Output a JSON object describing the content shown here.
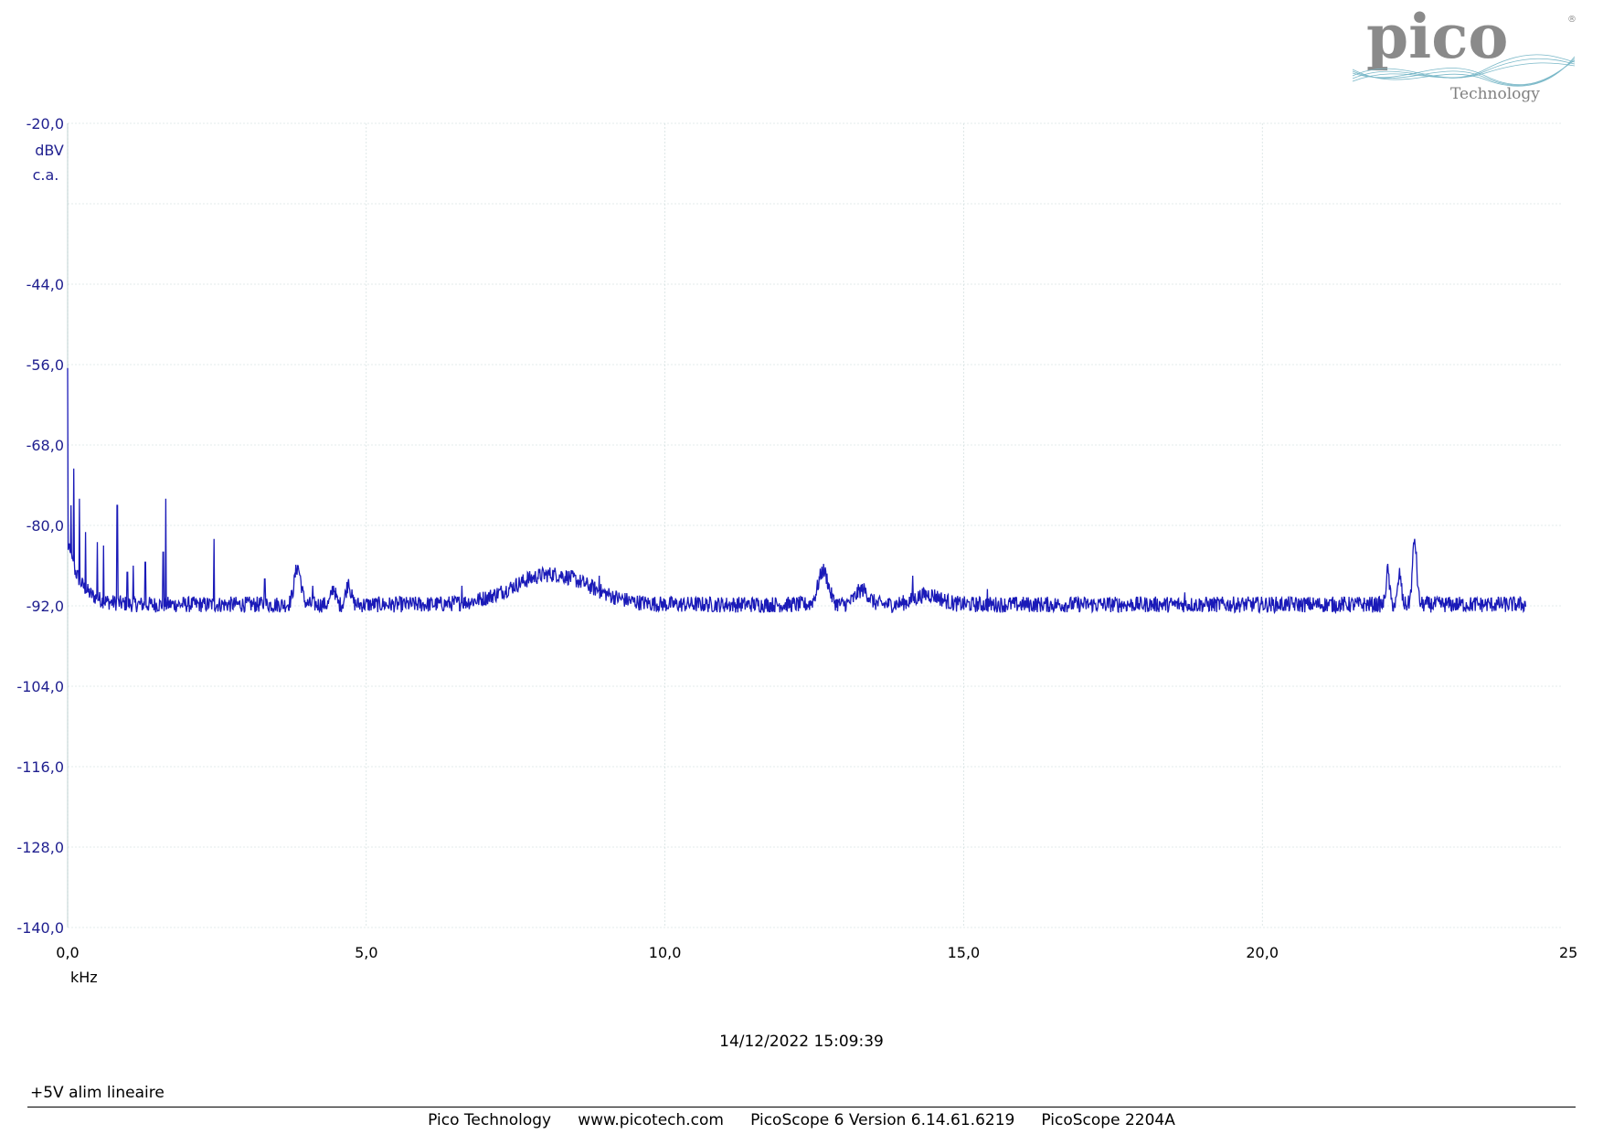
{
  "colors": {
    "trace": "#1a1ab8",
    "axis_text": "#1f1f8f",
    "grid": "#c8d8d8",
    "logo_gray": "#7a7a7a",
    "logo_wave": "#7ab8c8"
  },
  "logo": {
    "brand": "pico",
    "sub": "Technology",
    "mark": "®"
  },
  "chart_data": {
    "type": "line",
    "xlabel": "kHz",
    "ylabel_unit": "dBV",
    "ylabel_mode": "c.a.",
    "xlim": [
      0,
      25
    ],
    "x_range_plotted": [
      0,
      24.41
    ],
    "ylim": [
      -140,
      -20
    ],
    "x_ticks": [
      "0,0",
      "5,0",
      "10,0",
      "15,0",
      "20,0",
      "25"
    ],
    "y_ticks": [
      "-20,0",
      "-44,0",
      "-56,0",
      "-68,0",
      "-80,0",
      "-92,0",
      "-104,0",
      "-116,0",
      "-128,0",
      "-140,0"
    ],
    "y_tick_values": [
      -20,
      -44,
      -56,
      -68,
      -80,
      -92,
      -104,
      -116,
      -128,
      -140
    ],
    "grid": true,
    "noise_floor": -91.8,
    "series": [
      {
        "peaks_khz_dbv": [
          [
            0.0,
            -56.5
          ],
          [
            0.06,
            -77
          ],
          [
            0.1,
            -71.5
          ],
          [
            0.2,
            -76
          ],
          [
            0.3,
            -81
          ],
          [
            0.5,
            -82.5
          ],
          [
            0.6,
            -83
          ],
          [
            0.83,
            -77
          ],
          [
            1.0,
            -87
          ],
          [
            1.1,
            -86
          ],
          [
            1.3,
            -85.5
          ],
          [
            1.6,
            -84
          ],
          [
            1.64,
            -76
          ],
          [
            2.45,
            -82
          ],
          [
            3.3,
            -88
          ],
          [
            3.85,
            -86
          ],
          [
            4.1,
            -89
          ],
          [
            4.45,
            -89
          ],
          [
            4.7,
            -88
          ],
          [
            6.6,
            -89
          ],
          [
            7.7,
            -87
          ],
          [
            8.9,
            -87.5
          ],
          [
            12.65,
            -87
          ],
          [
            13.3,
            -89.5
          ],
          [
            14.15,
            -87.5
          ],
          [
            15.4,
            -89.5
          ],
          [
            18.7,
            -90
          ],
          [
            22.1,
            -86
          ],
          [
            22.3,
            -86.5
          ],
          [
            22.55,
            -82
          ]
        ]
      }
    ]
  },
  "footer": {
    "timestamp": "14/12/2022 15:09:39",
    "caption": "+5V alim lineaire",
    "company": "Pico Technology",
    "website": "www.picotech.com",
    "software": "PicoScope 6 Version 6.14.61.6219",
    "device": "PicoScope 2204A"
  }
}
